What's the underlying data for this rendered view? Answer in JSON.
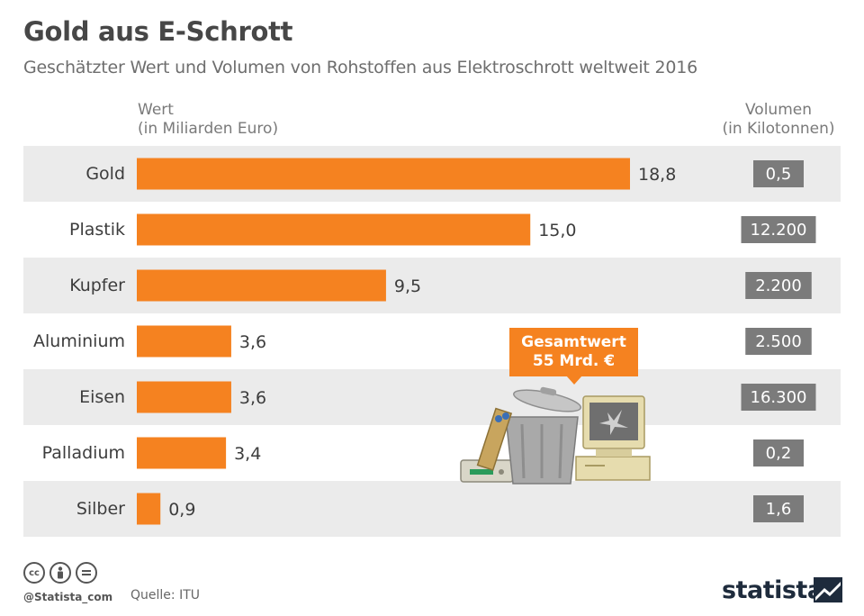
{
  "title": "Gold aus E-Schrott",
  "subtitle": "Geschätzter Wert und Volumen von Rohstoffen aus Elektroschrott weltweit 2016",
  "columns": {
    "wert_line1": "Wert",
    "wert_line2": "(in Miliarden Euro)",
    "volumen_line1": "Volumen",
    "volumen_line2": "(in Kilotonnen)"
  },
  "badge": {
    "line1": "Gesamtwert",
    "line2": "55 Mrd. €"
  },
  "footer": {
    "handle": "@Statista_com",
    "source": "Quelle: ITU",
    "brand": "statista"
  },
  "colors": {
    "bar": "#f58220",
    "row_band": "#ebebeb",
    "volume_box": "#7b7b7b",
    "badge": "#f58220"
  },
  "icons": [
    "cc-icon",
    "by-icon",
    "nd-icon",
    "trash-can-icon",
    "crt-monitor-icon",
    "router-icon",
    "statista-logo-icon"
  ],
  "chart_data": {
    "type": "bar",
    "orientation": "horizontal",
    "categories": [
      "Gold",
      "Plastik",
      "Kupfer",
      "Aluminium",
      "Eisen",
      "Palladium",
      "Silber"
    ],
    "values": [
      18.8,
      15.0,
      9.5,
      3.6,
      3.6,
      3.4,
      0.9
    ],
    "value_labels": [
      "18,8",
      "15,0",
      "9,5",
      "3,6",
      "3,6",
      "3,4",
      "0,9"
    ],
    "volumes": [
      0.5,
      12200,
      2200,
      2500,
      16300,
      0.2,
      1.6
    ],
    "volume_labels": [
      "0,5",
      "12.200",
      "2.200",
      "2.500",
      "16.300",
      "0,2",
      "1,6"
    ],
    "xlim": [
      0,
      18.8
    ]
  }
}
